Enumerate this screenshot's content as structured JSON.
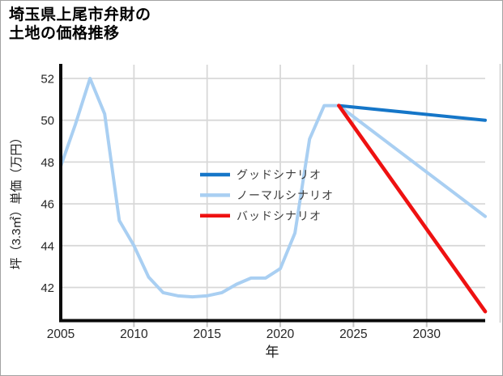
{
  "header": {
    "title_line1": "埼玉県上尾市弁財の",
    "title_line2": "土地の価格推移"
  },
  "chart_data": {
    "type": "line",
    "title": "埼玉県上尾市弁財の土地の価格推移",
    "xlabel": "年",
    "ylabel": "坪（3.3㎡）単価（万円）",
    "xlim": [
      2005,
      2035
    ],
    "ylim": [
      40.5,
      52.7
    ],
    "xticks": [
      2005,
      2010,
      2015,
      2020,
      2025,
      2030
    ],
    "yticks": [
      42,
      44,
      46,
      48,
      50,
      52
    ],
    "grid": true,
    "legend_position": "center-right",
    "series": [
      {
        "name": "グッドシナリオ",
        "color": "#1576c8",
        "x": [
          2024,
          2034
        ],
        "values": [
          50.7,
          50.0
        ]
      },
      {
        "name": "ノーマルシナリオ",
        "color": "#a9cff2",
        "x": [
          2005,
          2006,
          2007,
          2008,
          2009,
          2010,
          2011,
          2012,
          2013,
          2014,
          2015,
          2016,
          2017,
          2018,
          2019,
          2020,
          2021,
          2022,
          2023,
          2024,
          2034
        ],
        "values": [
          47.8,
          49.8,
          52.0,
          50.3,
          45.2,
          44.0,
          42.5,
          41.75,
          41.6,
          41.55,
          41.6,
          41.75,
          42.15,
          42.45,
          42.45,
          42.9,
          44.6,
          49.1,
          50.7,
          50.7,
          45.4
        ]
      },
      {
        "name": "バッドシナリオ",
        "color": "#ee1111",
        "x": [
          2024,
          2034
        ],
        "values": [
          50.7,
          40.85
        ]
      }
    ],
    "styles": {
      "grid_color": "#d8d8d8",
      "spine_color": "#0a0a0a",
      "tick_label_color": "#262626",
      "legend_text_color": "#3a3a3a"
    }
  }
}
